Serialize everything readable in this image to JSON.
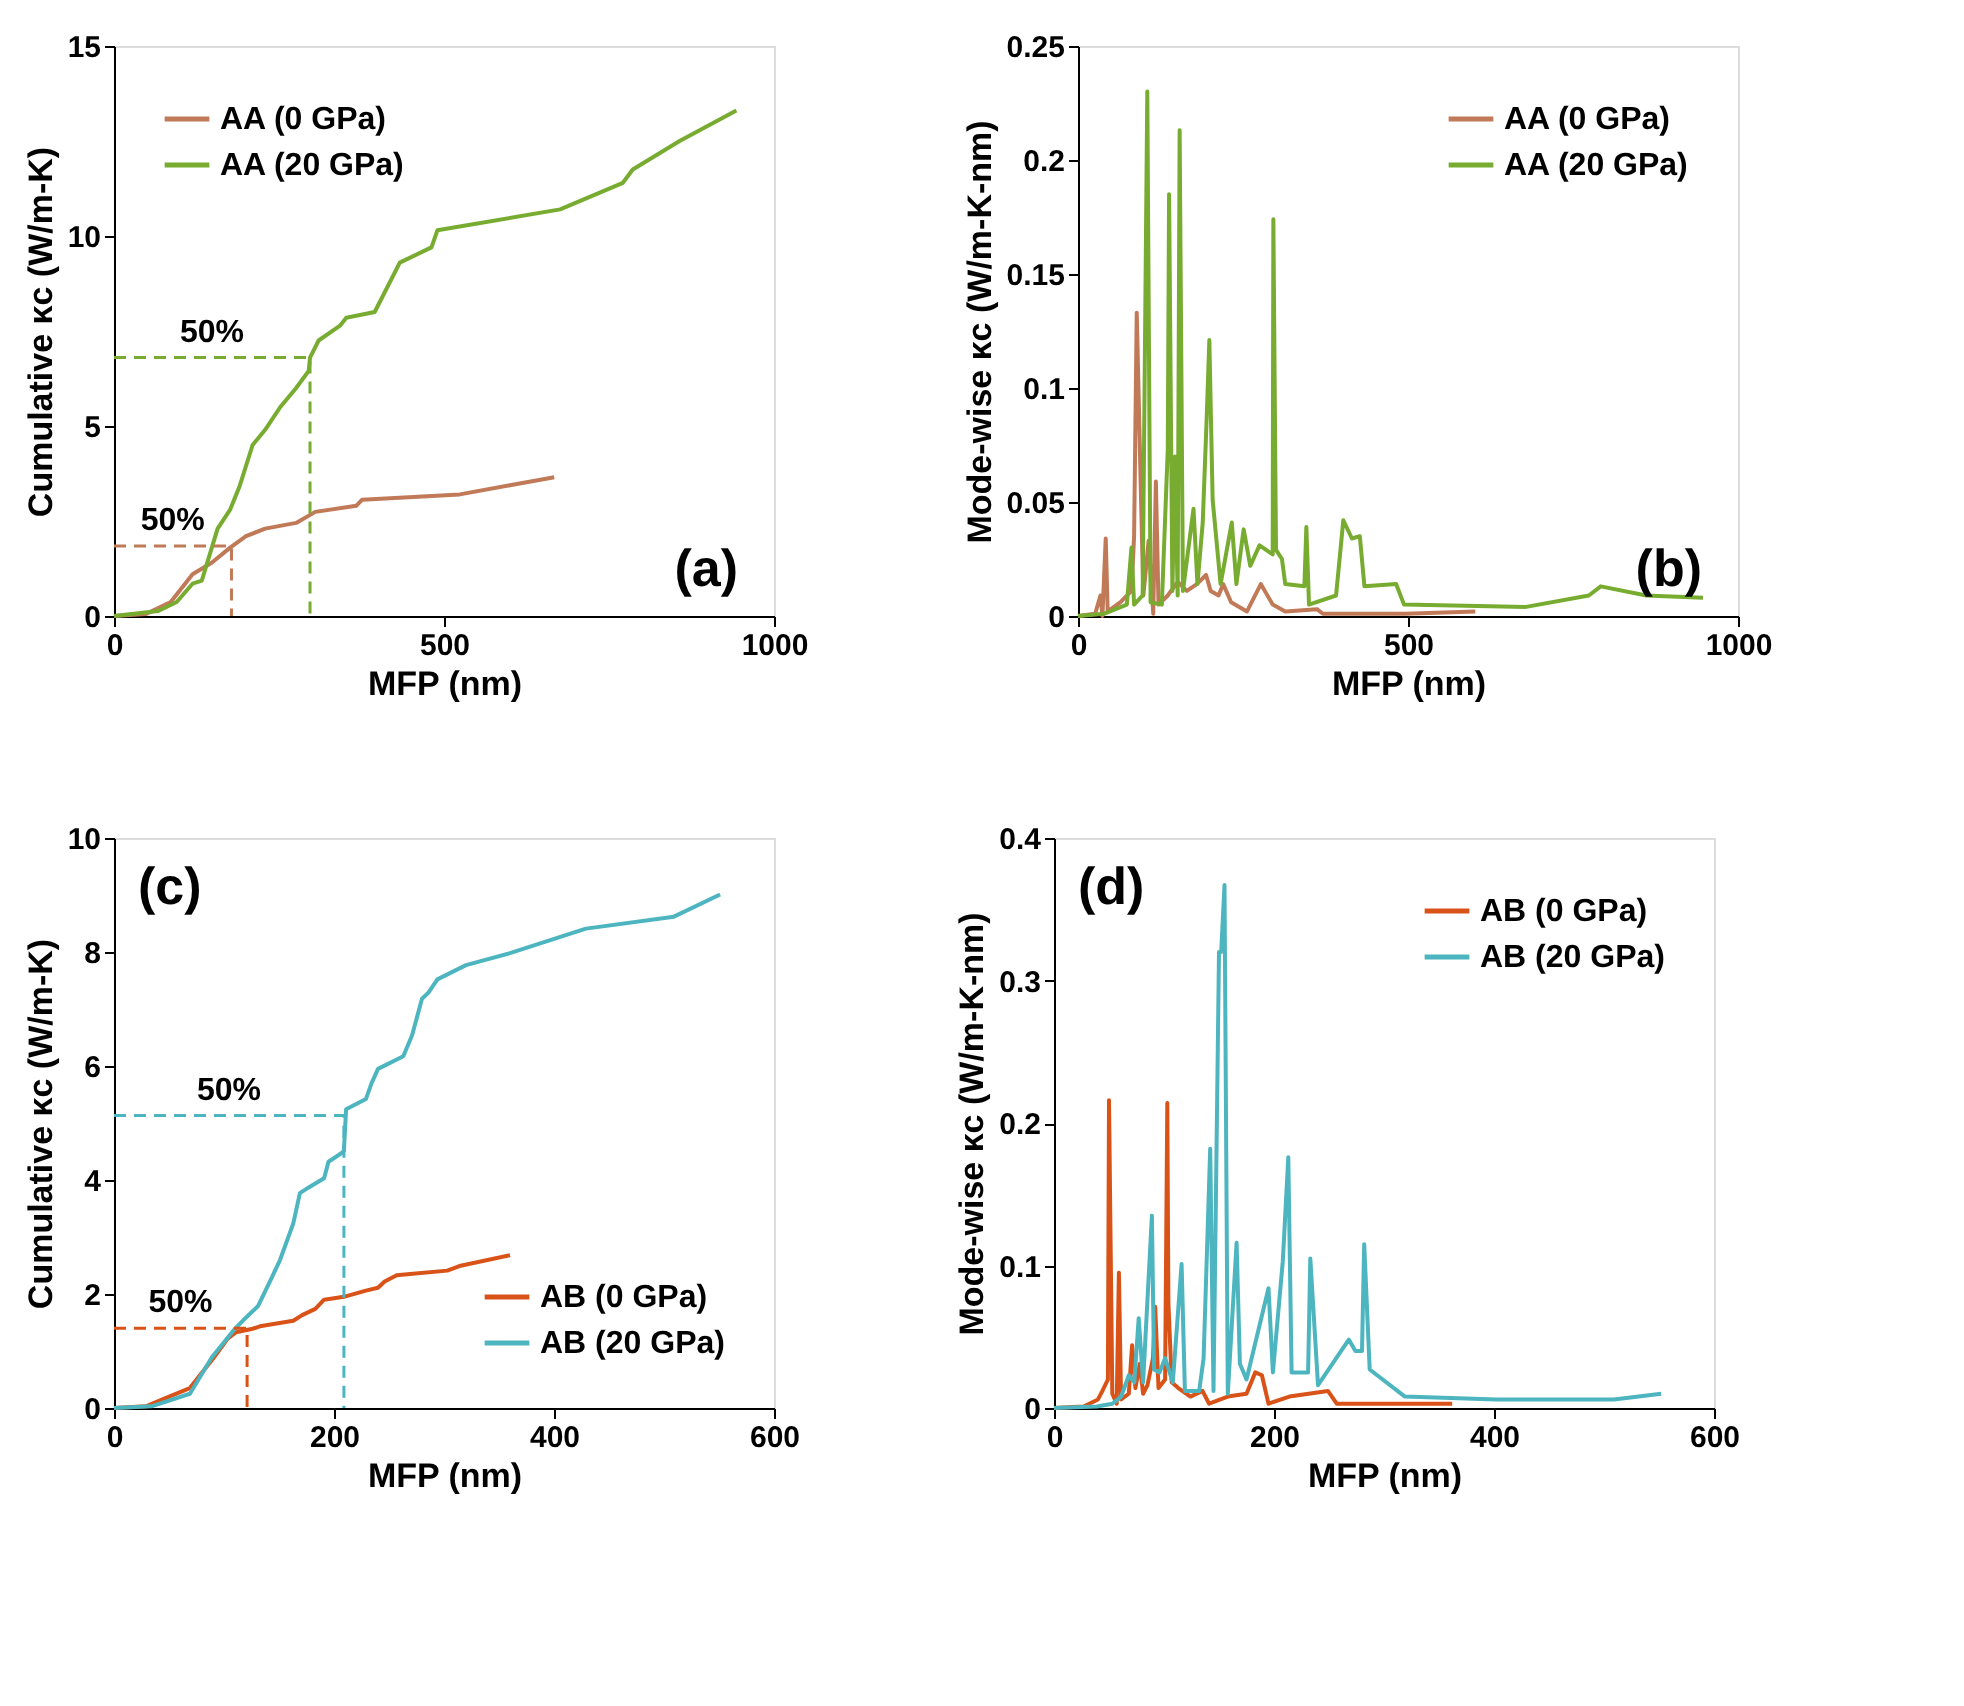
{
  "chart_data": [
    {
      "type": "line",
      "xlabel": "MFP (nm)",
      "ylabel": "Cumulative κc (W/m-K)",
      "xlim": [
        0,
        1000
      ],
      "ylim": [
        0,
        15
      ],
      "xticks": [
        0,
        500,
        1000
      ],
      "yticks": [
        0,
        5,
        10,
        15
      ],
      "grid": false,
      "legend": "top left",
      "line_style": "solid",
      "marker": "none",
      "series": [
        {
          "name": "AA (0 GPa)",
          "color": "#c17a58",
          "x": [
            0,
            48,
            86,
            119,
            148,
            176,
            200,
            229,
            276,
            305,
            367,
            376,
            524,
            600,
            667
          ],
          "values": [
            0,
            0.05,
            0.37,
            1.1,
            1.4,
            1.8,
            2.1,
            2.3,
            2.45,
            2.74,
            2.9,
            3.06,
            3.2,
            3.44,
            3.65
          ]
        },
        {
          "name": "AA (20 GPa)",
          "color": "#77ac30",
          "x": [
            0,
            67,
            95,
            119,
            133,
            157,
            176,
            190,
            210,
            229,
            252,
            276,
            295,
            297,
            310,
            343,
            352,
            395,
            433,
            481,
            490,
            676,
            771,
            786,
            857,
            943
          ],
          "values": [
            0,
            0.13,
            0.37,
            0.85,
            0.93,
            2.3,
            2.8,
            3.4,
            4.5,
            4.9,
            5.5,
            6.0,
            6.45,
            6.8,
            7.25,
            7.65,
            7.85,
            8.0,
            9.3,
            9.7,
            10.15,
            10.7,
            11.4,
            11.75,
            12.5,
            13.3
          ]
        },
        {
          "color": "#77ac30",
          "line_style": "dashed",
          "x": [
            0,
            297,
            297
          ],
          "values": [
            6.8,
            6.8,
            0
          ]
        },
        {
          "color": "#c17a58",
          "line_style": "dashed",
          "x": [
            0,
            178,
            178
          ],
          "values": [
            1.84,
            1.84,
            0
          ]
        }
      ],
      "annotations": [
        "50%",
        "50%",
        "(a)"
      ]
    },
    {
      "type": "line",
      "xlabel": "MFP (nm)",
      "ylabel": "Mode-wise κc (W/m-K-nm)",
      "xlim": [
        0,
        1000
      ],
      "ylim": [
        0,
        0.25
      ],
      "xticks": [
        0,
        500,
        1000
      ],
      "yticks": [
        0,
        0.05,
        0.1,
        0.15,
        0.2,
        0.25
      ],
      "grid": false,
      "legend": "top right",
      "line_style": "solid",
      "marker": "none",
      "series": [
        {
          "name": "AA (0 GPa)",
          "color": "#c17a58",
          "x": [
            0,
            26,
            34,
            37,
            42,
            45,
            64,
            81,
            85,
            89,
            94,
            99,
            107,
            114,
            118,
            122,
            136,
            151,
            165,
            180,
            194,
            201,
            213,
            220,
            232,
            256,
            277,
            295,
            314,
            362,
            371,
            496,
            602
          ],
          "values": [
            0,
            0.001,
            0.009,
            0,
            0.034,
            0.002,
            0.006,
            0.011,
            0.035,
            0.133,
            0.07,
            0.009,
            0.033,
            0.001,
            0.059,
            0.005,
            0.009,
            0.015,
            0.011,
            0.014,
            0.018,
            0.011,
            0.009,
            0.014,
            0.006,
            0.002,
            0.014,
            0.005,
            0.002,
            0.003,
            0.001,
            0.001,
            0.002
          ]
        },
        {
          "name": "AA (20 GPa)",
          "color": "#77ac30",
          "x": [
            0,
            40,
            74,
            81,
            85,
            98,
            105,
            110,
            127,
            136,
            138,
            143,
            147,
            151,
            154,
            159,
            175,
            181,
            189,
            195,
            199,
            204,
            216,
            233,
            240,
            251,
            261,
            275,
            295,
            296,
            300,
            309,
            314,
            343,
            346,
            350,
            391,
            402,
            415,
            427,
            434,
            482,
            494,
            679,
            774,
            792,
            861,
            947
          ],
          "values": [
            0,
            0.001,
            0.005,
            0.03,
            0.005,
            0.009,
            0.23,
            0.006,
            0.005,
            0.073,
            0.185,
            0.011,
            0.07,
            0.009,
            0.213,
            0.011,
            0.047,
            0.014,
            0.041,
            0.087,
            0.121,
            0.051,
            0.014,
            0.041,
            0.014,
            0.038,
            0.022,
            0.031,
            0.027,
            0.174,
            0.029,
            0.025,
            0.014,
            0.013,
            0.039,
            0.005,
            0.009,
            0.042,
            0.034,
            0.035,
            0.013,
            0.014,
            0.005,
            0.004,
            0.009,
            0.013,
            0.009,
            0.008
          ]
        }
      ],
      "annotations": [
        "(b)"
      ]
    },
    {
      "type": "line",
      "xlabel": "MFP (nm)",
      "ylabel": "Cumulative κc (W/m-K)",
      "xlim": [
        0,
        600
      ],
      "ylim": [
        0,
        10
      ],
      "xticks": [
        0,
        200,
        400,
        600
      ],
      "yticks": [
        0,
        2,
        4,
        6,
        8,
        10
      ],
      "grid": false,
      "legend": "bottom right",
      "line_style": "solid",
      "marker": "none",
      "series": [
        {
          "name": "AB (0 GPa)",
          "color": "#d95319",
          "x": [
            0,
            29,
            49,
            69,
            91,
            103,
            111,
            126,
            134,
            163,
            171,
            183,
            191,
            209,
            229,
            240,
            246,
            257,
            303,
            314,
            360
          ],
          "values": [
            0,
            0.03,
            0.19,
            0.35,
            0.89,
            1.21,
            1.33,
            1.39,
            1.44,
            1.53,
            1.63,
            1.74,
            1.9,
            1.95,
            2.06,
            2.11,
            2.22,
            2.33,
            2.41,
            2.49,
            2.68
          ]
        },
        {
          "name": "AB (20 GPa)",
          "color": "#4db5bf",
          "x": [
            0,
            34,
            69,
            89,
            109,
            117,
            131,
            143,
            151,
            163,
            169,
            177,
            191,
            195,
            206,
            209,
            211,
            229,
            234,
            240,
            263,
            271,
            280,
            286,
            294,
            320,
            360,
            429,
            509,
            551
          ],
          "values": [
            0,
            0.03,
            0.25,
            0.89,
            1.37,
            1.53,
            1.79,
            2.27,
            2.6,
            3.24,
            3.77,
            3.87,
            4.03,
            4.32,
            4.46,
            4.51,
            5.24,
            5.42,
            5.69,
            5.95,
            6.17,
            6.54,
            7.18,
            7.29,
            7.52,
            7.77,
            7.98,
            8.41,
            8.62,
            9.01
          ]
        },
        {
          "color": "#4db5bf",
          "line_style": "dashed",
          "x": [
            0,
            209,
            209
          ],
          "values": [
            5.13,
            5.13,
            0
          ]
        },
        {
          "color": "#d95319",
          "line_style": "dashed",
          "x": [
            0,
            121,
            121
          ],
          "values": [
            1.4,
            1.4,
            0
          ]
        }
      ],
      "annotations": [
        "50%",
        "50%",
        "(c)"
      ]
    },
    {
      "type": "line",
      "xlabel": "MFP (nm)",
      "ylabel": "Mode-wise κc (W/m-K-nm)",
      "xlim": [
        0,
        600
      ],
      "ylim": [
        0,
        0.4
      ],
      "xticks": [
        0,
        200,
        400,
        600
      ],
      "yticks": [
        0,
        0.1,
        0.2,
        0.3,
        0.4
      ],
      "grid": false,
      "legend": "top right",
      "line_style": "solid",
      "marker": "none",
      "series": [
        {
          "name": "AB (0 GPa)",
          "color": "#d95319",
          "x": [
            0,
            27,
            40,
            44,
            49,
            50,
            53,
            57,
            59,
            61,
            68,
            71,
            74,
            78,
            81,
            85,
            90,
            92,
            95,
            101,
            103,
            104,
            107,
            113,
            124,
            135,
            141,
            158,
            175,
            183,
            189,
            195,
            214,
            249,
            257,
            362
          ],
          "values": [
            0,
            0.001,
            0.006,
            0.012,
            0.02,
            0.216,
            0.01,
            0.003,
            0.095,
            0.006,
            0.01,
            0.044,
            0.014,
            0.031,
            0.01,
            0.016,
            0.035,
            0.071,
            0.014,
            0.02,
            0.214,
            0.074,
            0.018,
            0.014,
            0.008,
            0.012,
            0.003,
            0.008,
            0.01,
            0.025,
            0.023,
            0.003,
            0.008,
            0.012,
            0.003,
            0.003
          ]
        },
        {
          "name": "AB (20 GPa)",
          "color": "#4db5bf",
          "x": [
            0,
            39,
            53,
            61,
            68,
            73,
            77,
            81,
            89,
            91,
            96,
            101,
            108,
            116,
            119,
            132,
            136,
            142,
            145,
            150,
            152,
            155,
            158,
            166,
            169,
            175,
            195,
            199,
            208,
            213,
            216,
            231,
            233,
            240,
            268,
            274,
            280,
            282,
            287,
            319,
            402,
            509,
            552
          ],
          "values": [
            0,
            0.001,
            0.003,
            0.008,
            0.023,
            0.018,
            0.063,
            0.018,
            0.135,
            0.027,
            0.025,
            0.035,
            0.018,
            0.101,
            0.012,
            0.012,
            0.035,
            0.182,
            0.012,
            0.32,
            0.32,
            0.367,
            0.01,
            0.116,
            0.031,
            0.02,
            0.084,
            0.025,
            0.103,
            0.176,
            0.025,
            0.025,
            0.105,
            0.016,
            0.048,
            0.04,
            0.04,
            0.115,
            0.027,
            0.008,
            0.006,
            0.006,
            0.01
          ]
        }
      ],
      "annotations": [
        "(d)"
      ]
    }
  ]
}
